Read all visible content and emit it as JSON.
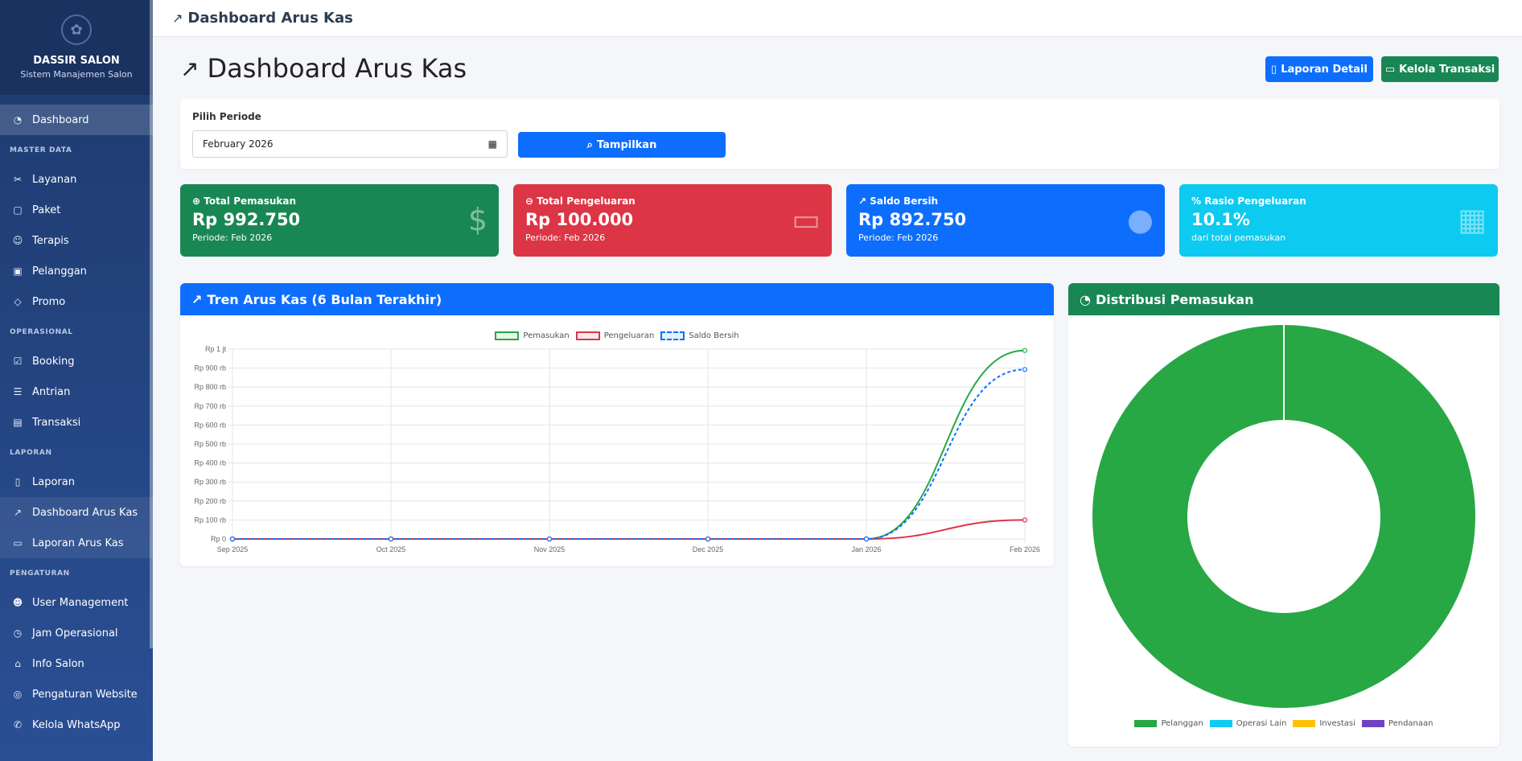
{
  "brand": {
    "name": "DASSIR SALON",
    "subtitle": "Sistem Manajemen Salon"
  },
  "sidebar": {
    "dashboard": "Dashboard",
    "sections": {
      "master": "MASTER DATA",
      "operasional": "OPERASIONAL",
      "laporan": "LAPORAN",
      "pengaturan": "PENGATURAN"
    },
    "master_items": [
      "Layanan",
      "Paket",
      "Terapis",
      "Pelanggan",
      "Promo"
    ],
    "operasional_items": [
      "Booking",
      "Antrian",
      "Transaksi"
    ],
    "laporan_items": [
      "Laporan",
      "Dashboard Arus Kas",
      "Laporan Arus Kas"
    ],
    "pengaturan_items": [
      "User Management",
      "Jam Operasional",
      "Info Salon",
      "Pengaturan Website",
      "Kelola WhatsApp"
    ]
  },
  "topbar": {
    "title": "Dashboard Arus Kas"
  },
  "header": {
    "title": "Dashboard Arus Kas",
    "btn_detail": "Laporan Detail",
    "btn_kelola": "Kelola Transaksi"
  },
  "filter": {
    "label": "Pilih Periode",
    "value": "February 2026",
    "button": "Tampilkan"
  },
  "stats": [
    {
      "title": "Total Pemasukan",
      "value": "Rp 992.750",
      "sub": "Periode: Feb 2026",
      "color": "#198754"
    },
    {
      "title": "Total Pengeluaran",
      "value": "Rp 100.000",
      "sub": "Periode: Feb 2026",
      "color": "#dc3545"
    },
    {
      "title": "Saldo Bersih",
      "value": "Rp 892.750",
      "sub": "Periode: Feb 2026",
      "color": "#0d6efd"
    },
    {
      "title": "Rasio Pengeluaran",
      "value": "10.1%",
      "sub": "dari total pemasukan",
      "color": "#0dcaf0"
    }
  ],
  "line_card": {
    "title": "Tren Arus Kas (6 Bulan Terakhir)"
  },
  "donut_card": {
    "title": "Distribusi Pemasukan"
  },
  "chart_data": [
    {
      "type": "line",
      "title": "Tren Arus Kas (6 Bulan Terakhir)",
      "categories": [
        "Sep 2025",
        "Oct 2025",
        "Nov 2025",
        "Dec 2025",
        "Jan 2026",
        "Feb 2026"
      ],
      "ylim": [
        0,
        1000000
      ],
      "yticks": [
        "Rp 0",
        "Rp 100 rb",
        "Rp 200 rb",
        "Rp 300 rb",
        "Rp 400 rb",
        "Rp 500 rb",
        "Rp 600 rb",
        "Rp 700 rb",
        "Rp 800 rb",
        "Rp 900 rb",
        "Rp 1 jt"
      ],
      "grid": true,
      "legend": "top",
      "series": [
        {
          "name": "Pemasukan",
          "values": [
            0,
            0,
            0,
            0,
            0,
            992750
          ],
          "color": "#28a745"
        },
        {
          "name": "Pengeluaran",
          "values": [
            0,
            0,
            0,
            0,
            0,
            100000
          ],
          "color": "#dc3545"
        },
        {
          "name": "Saldo Bersih",
          "values": [
            0,
            0,
            0,
            0,
            0,
            892750
          ],
          "color": "#0d6efd",
          "dashed": true
        }
      ]
    },
    {
      "type": "pie",
      "title": "Distribusi Pemasukan",
      "donut": true,
      "legend": "bottom",
      "categories": [
        "Pelanggan",
        "Operasi Lain",
        "Investasi",
        "Pendanaan"
      ],
      "values": [
        992750,
        0,
        0,
        0
      ],
      "colors": [
        "#28a745",
        "#0dcaf0",
        "#ffc107",
        "#6f42c1"
      ]
    }
  ]
}
